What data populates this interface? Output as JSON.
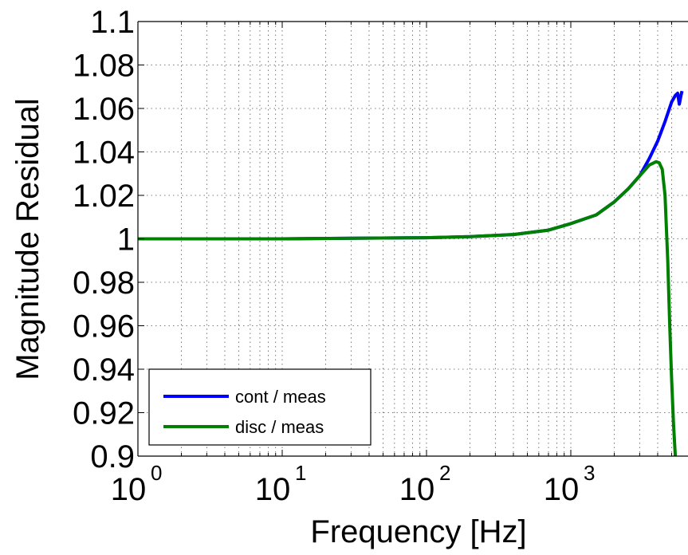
{
  "chart_data": {
    "type": "line",
    "xlabel": "Frequency [Hz]",
    "ylabel": "Magnitude Residual",
    "x_scale": "log",
    "xlim": [
      1,
      5900
    ],
    "ylim": [
      0.9,
      1.1
    ],
    "grid": true,
    "x_ticks": [
      {
        "base": "10",
        "exp": "0",
        "value": 1
      },
      {
        "base": "10",
        "exp": "1",
        "value": 10
      },
      {
        "base": "10",
        "exp": "2",
        "value": 100
      },
      {
        "base": "10",
        "exp": "3",
        "value": 1000
      }
    ],
    "y_ticks": [
      "0.9",
      "0.92",
      "0.94",
      "0.96",
      "0.98",
      "1",
      "1.02",
      "1.04",
      "1.06",
      "1.08",
      "1.1"
    ],
    "legend_position": "bottom-left",
    "series": [
      {
        "name": "cont / meas",
        "color": "#0000ff",
        "points": [
          [
            1,
            1.0
          ],
          [
            10,
            1.0
          ],
          [
            100,
            1.0005
          ],
          [
            200,
            1.001
          ],
          [
            400,
            1.002
          ],
          [
            700,
            1.004
          ],
          [
            1000,
            1.007
          ],
          [
            1500,
            1.011
          ],
          [
            2000,
            1.017
          ],
          [
            2500,
            1.023
          ],
          [
            3000,
            1.029
          ],
          [
            3500,
            1.037
          ],
          [
            4000,
            1.045
          ],
          [
            4500,
            1.054
          ],
          [
            5000,
            1.063
          ],
          [
            5300,
            1.066
          ],
          [
            5500,
            1.067
          ],
          [
            5650,
            1.062
          ],
          [
            5800,
            1.066
          ],
          [
            5900,
            1.068
          ]
        ]
      },
      {
        "name": "disc / meas",
        "color": "#008000",
        "points": [
          [
            1,
            1.0
          ],
          [
            10,
            1.0
          ],
          [
            100,
            1.0005
          ],
          [
            200,
            1.001
          ],
          [
            400,
            1.002
          ],
          [
            700,
            1.004
          ],
          [
            1000,
            1.007
          ],
          [
            1500,
            1.011
          ],
          [
            2000,
            1.017
          ],
          [
            2500,
            1.023
          ],
          [
            3000,
            1.029
          ],
          [
            3500,
            1.034
          ],
          [
            3900,
            1.0355
          ],
          [
            4100,
            1.035
          ],
          [
            4300,
            1.032
          ],
          [
            4500,
            1.02
          ],
          [
            4700,
            0.99
          ],
          [
            4850,
            0.96
          ],
          [
            5000,
            0.935
          ],
          [
            5150,
            0.915
          ],
          [
            5300,
            0.9
          ]
        ]
      }
    ]
  }
}
